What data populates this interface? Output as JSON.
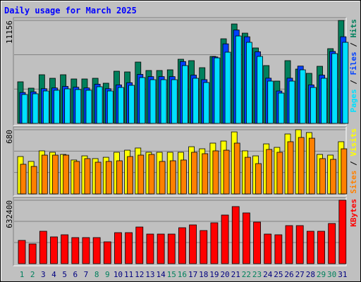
{
  "chart_data": {
    "type": "bar",
    "title": "Daily usage for March 2025",
    "categories": [
      "1",
      "2",
      "3",
      "4",
      "5",
      "6",
      "7",
      "8",
      "9",
      "10",
      "11",
      "12",
      "13",
      "14",
      "15",
      "16",
      "17",
      "18",
      "19",
      "20",
      "21",
      "22",
      "23",
      "24",
      "25",
      "26",
      "27",
      "28",
      "29",
      "30",
      "31"
    ],
    "category_colors": [
      "#00805c",
      "#00805c",
      "#000080",
      "#000080",
      "#000080",
      "#000080",
      "#000080",
      "#00805c",
      "#00805c",
      "#000080",
      "#000080",
      "#000080",
      "#000080",
      "#000080",
      "#00805c",
      "#00805c",
      "#000080",
      "#000080",
      "#000080",
      "#000080",
      "#000080",
      "#00805c",
      "#00805c",
      "#000080",
      "#000080",
      "#000080",
      "#000080",
      "#000080",
      "#00805c",
      "#00805c",
      "#000080"
    ],
    "legend_separator": " / ",
    "panels": [
      {
        "ylim": [
          0,
          11156
        ],
        "yticks": [
          11156
        ],
        "series": [
          {
            "name": "Hits",
            "color": "#00805c",
            "values": [
              4508,
              3820,
              5272,
              4890,
              5272,
              4814,
              4814,
              4890,
              4355,
              5654,
              5578,
              6647,
              5731,
              5731,
              5807,
              6953,
              6800,
              6036,
              7259,
              9169,
              10774,
              9780,
              8176,
              6266,
              4585,
              6800,
              5884,
              5425,
              6189,
              8099,
              11156
            ]
          },
          {
            "name": "Files",
            "color": "#0040ff",
            "values": [
              3350,
              3420,
              3760,
              3840,
              4010,
              3920,
              3840,
              4250,
              3760,
              4170,
              4410,
              5310,
              5070,
              5070,
              5070,
              6700,
              5230,
              4740,
              7200,
              8620,
              10120,
              9390,
              7760,
              4900,
              3510,
              4900,
              6210,
              4170,
              5230,
              7800,
              9390
            ]
          },
          {
            "name": "Pages",
            "color": "#00e0ff",
            "values": [
              3132,
              3209,
              3514,
              3591,
              3744,
              3667,
              3591,
              3973,
              3514,
              3896,
              4126,
              4966,
              4737,
              4737,
              4737,
              6265,
              4890,
              4431,
              7100,
              7716,
              9474,
              8786,
              7258,
              4584,
              3285,
              4584,
              5806,
              3896,
              4890,
              7564,
              8786
            ]
          }
        ]
      },
      {
        "ylim": [
          0,
          680
        ],
        "yticks": [
          680
        ],
        "series": [
          {
            "name": "Visits",
            "color": "#ffff00",
            "values": [
              396,
              344,
              456,
              441,
              418,
              359,
              403,
              374,
              388,
              441,
              463,
              486,
              441,
              441,
              441,
              441,
              500,
              478,
              538,
              560,
              657,
              456,
              403,
              530,
              493,
              635,
              680,
              650,
              418,
              411,
              553
            ]
          },
          {
            "name": "Sites",
            "color": "#ff8000",
            "values": [
              314,
              291,
              411,
              411,
              411,
              344,
              374,
              336,
              344,
              351,
              396,
              411,
              418,
              344,
              351,
              359,
              441,
              426,
              456,
              463,
              538,
              388,
              321,
              471,
              441,
              553,
              598,
              590,
              374,
              366,
              478
            ]
          }
        ]
      },
      {
        "ylim": [
          0,
          632400
        ],
        "yticks": [
          632400
        ],
        "series": [
          {
            "name": "KBytes",
            "color": "#ff0000",
            "values": [
              231891,
              196756,
              323242,
              267026,
              288107,
              259999,
              259999,
              259999,
              217837,
              309188,
              309188,
              365404,
              295134,
              295134,
              295134,
              358377,
              386485,
              330269,
              407566,
              484863,
              569187,
              505944,
              414593,
              295134,
              288107,
              379458,
              379458,
              323242,
              323242,
              400539,
              632400
            ]
          }
        ]
      }
    ]
  }
}
